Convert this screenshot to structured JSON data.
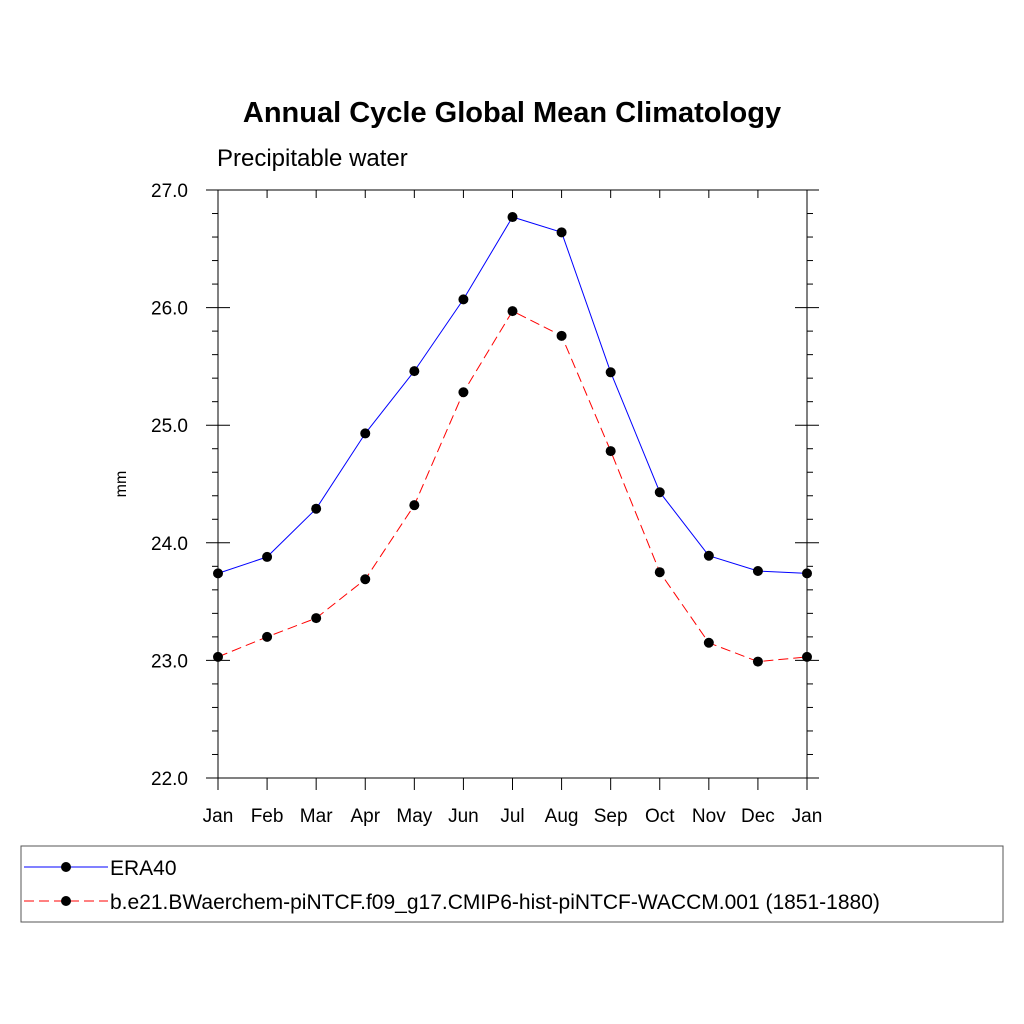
{
  "chart_data": {
    "type": "line",
    "title": "Annual Cycle Global Mean Climatology",
    "subtitle": "Precipitable water",
    "xlabel": "",
    "ylabel": "mm",
    "categories": [
      "Jan",
      "Feb",
      "Mar",
      "Apr",
      "May",
      "Jun",
      "Jul",
      "Aug",
      "Sep",
      "Oct",
      "Nov",
      "Dec",
      "Jan"
    ],
    "y_ticks": [
      "22.0",
      "23.0",
      "24.0",
      "25.0",
      "26.0",
      "27.0"
    ],
    "ylim": [
      22.0,
      27.0
    ],
    "series": [
      {
        "name": "ERA40",
        "color": "#0000ff",
        "line_style": "solid",
        "marker": "filled-circle",
        "values": [
          23.74,
          23.88,
          24.29,
          24.93,
          25.46,
          26.07,
          26.77,
          26.64,
          25.45,
          24.43,
          23.89,
          23.76,
          23.74
        ]
      },
      {
        "name": "b.e21.BWaerchem-piNTCF.f09_g17.CMIP6-hist-piNTCF-WACCM.001 (1851-1880)",
        "color": "#ff0000",
        "line_style": "dashed",
        "marker": "filled-circle",
        "values": [
          23.03,
          23.2,
          23.36,
          23.69,
          24.32,
          25.28,
          25.97,
          25.76,
          24.78,
          23.75,
          23.15,
          22.99,
          23.03
        ]
      }
    ],
    "legend_position": "bottom"
  }
}
